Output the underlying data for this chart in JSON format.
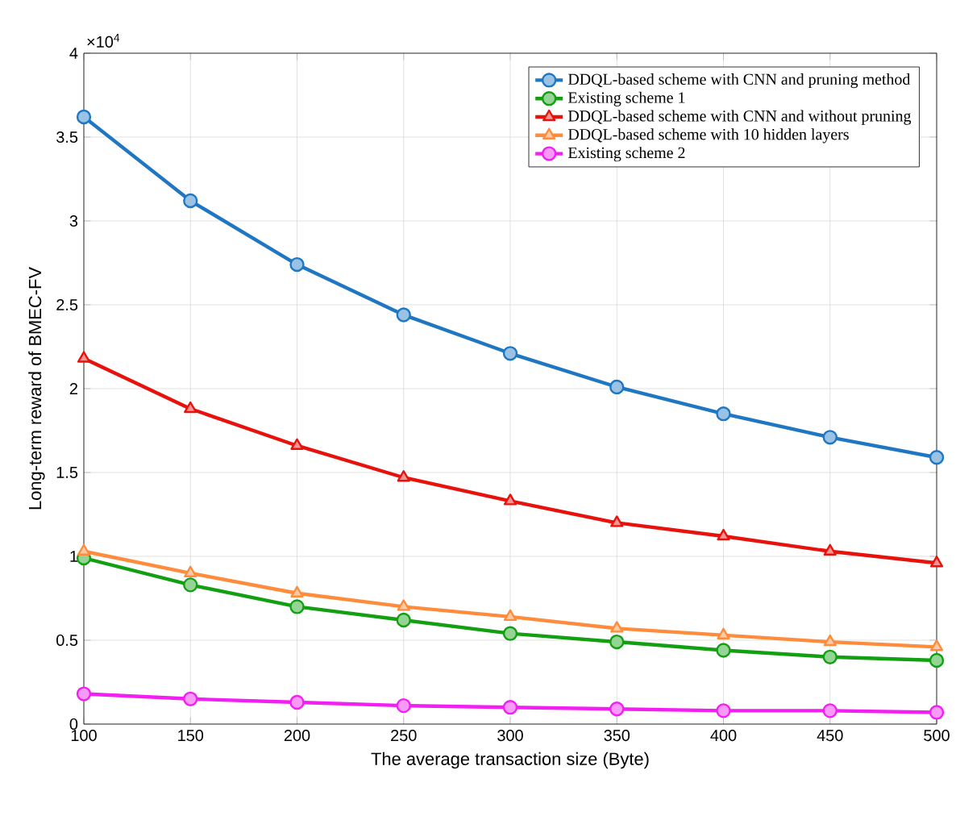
{
  "chart_data": {
    "type": "line",
    "xlabel": "The average transaction size (Byte)",
    "ylabel": "Long-term reward of BMEC-FV",
    "annotations": [
      "×10$^{4}$"
    ],
    "x": [
      100,
      150,
      200,
      250,
      300,
      350,
      400,
      450,
      500
    ],
    "xlim": [
      100,
      500
    ],
    "xticks": [
      100,
      150,
      200,
      250,
      300,
      350,
      400,
      450,
      500
    ],
    "ylim": [
      0,
      4
    ],
    "yticks": [
      0,
      0.5,
      1,
      1.5,
      2,
      2.5,
      3,
      3.5,
      4
    ],
    "grid": true,
    "legend": "top right",
    "series": [
      {
        "name": "DDQL-based scheme with CNN and pruning method",
        "color": "#1f77c4",
        "marker": "circle",
        "values": [
          3.62,
          3.12,
          2.74,
          2.44,
          2.21,
          2.01,
          1.85,
          1.71,
          1.59
        ]
      },
      {
        "name": "Existing scheme 1",
        "color": "#12a012",
        "marker": "circle",
        "values": [
          0.99,
          0.83,
          0.7,
          0.62,
          0.54,
          0.49,
          0.44,
          0.4,
          0.38
        ]
      },
      {
        "name": "DDQL-based scheme with CNN and without pruning",
        "color": "#e8120c",
        "marker": "triangle",
        "values": [
          2.18,
          1.88,
          1.66,
          1.47,
          1.33,
          1.2,
          1.12,
          1.03,
          0.96
        ]
      },
      {
        "name": "DDQL-based scheme with 10 hidden layers",
        "color": "#ff8c3c",
        "marker": "triangle",
        "values": [
          1.03,
          0.9,
          0.78,
          0.7,
          0.64,
          0.57,
          0.53,
          0.49,
          0.46
        ]
      },
      {
        "name": "Existing scheme 2",
        "color": "#f21ff2",
        "marker": "circle",
        "values": [
          0.18,
          0.15,
          0.13,
          0.11,
          0.1,
          0.09,
          0.08,
          0.08,
          0.07
        ]
      }
    ]
  }
}
